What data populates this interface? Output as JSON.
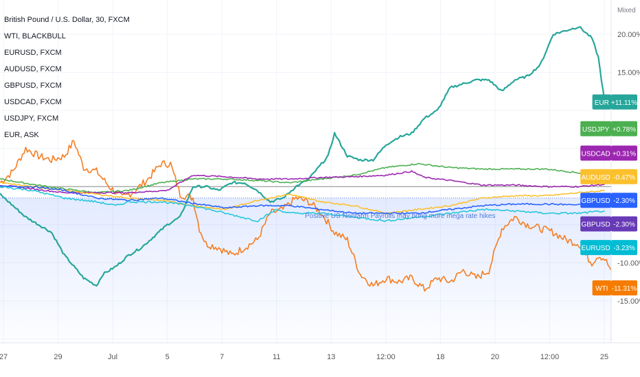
{
  "legend": [
    "British Pound / U.S. Dollar, 30, FXCM",
    "WTI, BLACKBULL",
    "EURUSD, FXCM",
    "AUDUSD, FXCM",
    "GBPUSD, FXCM",
    "USDCAD, FXCM",
    "USDJPY, FXCM",
    "EUR, ASK"
  ],
  "scale_mode": "Mixed",
  "chart_data": {
    "type": "line",
    "x_ticks": [
      "27",
      "29",
      "Jul",
      "5",
      "7",
      "11",
      "13",
      "12:00",
      "18",
      "20",
      "12:00",
      "25"
    ],
    "y_ticks": [
      {
        "v": 20,
        "label": "20.00%"
      },
      {
        "v": 15,
        "label": "15.00%"
      },
      {
        "v": -10,
        "label": "-10.00%"
      },
      {
        "v": -15,
        "label": "-15.00%"
      }
    ],
    "ylim": [
      -20.5,
      24.5
    ],
    "grid": true,
    "annotation": "Positive US Nonfarm Payrolls may bring more mega rate hikes",
    "series": [
      {
        "name": "WTI",
        "color": "#f57c1f",
        "noise": 1.0,
        "data": [
          [
            0,
            0.5
          ],
          [
            2,
            2
          ],
          [
            4,
            5
          ],
          [
            6,
            4
          ],
          [
            8,
            3.5
          ],
          [
            10,
            4
          ],
          [
            11.5,
            6
          ],
          [
            13,
            2.5
          ],
          [
            15,
            2
          ],
          [
            17,
            0
          ],
          [
            19,
            -1.5
          ],
          [
            21,
            -0.5
          ],
          [
            23,
            1
          ],
          [
            25,
            3
          ],
          [
            26.5,
            3
          ],
          [
            28,
            -1
          ],
          [
            30,
            -1.5
          ],
          [
            31,
            -5.5
          ],
          [
            32,
            -7.5
          ],
          [
            34,
            -8
          ],
          [
            36,
            -9
          ],
          [
            38,
            -8
          ],
          [
            40,
            -7
          ],
          [
            42,
            -3.5
          ],
          [
            44,
            -3
          ],
          [
            46,
            -1.5
          ],
          [
            48,
            -2
          ],
          [
            50,
            -3.5
          ],
          [
            52,
            -6
          ],
          [
            54,
            -7
          ],
          [
            56,
            -11.5
          ],
          [
            58,
            -13
          ],
          [
            60,
            -12
          ],
          [
            62,
            -12.5
          ],
          [
            64,
            -12
          ],
          [
            66,
            -13.5
          ],
          [
            68,
            -12
          ],
          [
            70,
            -12.5
          ],
          [
            72,
            -11
          ],
          [
            74,
            -12
          ],
          [
            76,
            -11
          ],
          [
            78,
            -5.5
          ],
          [
            80,
            -4
          ],
          [
            82,
            -5
          ],
          [
            84,
            -5.5
          ],
          [
            86,
            -6
          ],
          [
            88,
            -7
          ],
          [
            90,
            -7.5
          ],
          [
            91,
            -9
          ],
          [
            92,
            -10
          ],
          [
            93,
            -9
          ],
          [
            94,
            -9.5
          ],
          [
            95,
            -11
          ]
        ]
      },
      {
        "name": "EUR",
        "color": "#26a69a",
        "noise": 0.3,
        "data": [
          [
            0,
            -1
          ],
          [
            2,
            -2.5
          ],
          [
            4,
            -4
          ],
          [
            6,
            -5
          ],
          [
            8,
            -6
          ],
          [
            9,
            -7.5
          ],
          [
            10,
            -9
          ],
          [
            11,
            -10
          ],
          [
            12,
            -11
          ],
          [
            13,
            -12
          ],
          [
            15,
            -13
          ],
          [
            16,
            -11.5
          ],
          [
            18,
            -10.5
          ],
          [
            20,
            -9
          ],
          [
            22,
            -8
          ],
          [
            24,
            -6.5
          ],
          [
            26,
            -5
          ],
          [
            28,
            -4
          ],
          [
            29,
            -2
          ],
          [
            30,
            0
          ],
          [
            32,
            0
          ],
          [
            34,
            -0.5
          ],
          [
            36,
            0.5
          ],
          [
            38,
            0.5
          ],
          [
            40,
            -0.5
          ],
          [
            42,
            -2
          ],
          [
            44,
            -1.5
          ],
          [
            46,
            0
          ],
          [
            48,
            1
          ],
          [
            50,
            3
          ],
          [
            51,
            4
          ],
          [
            52,
            7
          ],
          [
            54,
            4
          ],
          [
            56,
            3.5
          ],
          [
            58,
            3.5
          ],
          [
            60,
            5.5
          ],
          [
            62,
            6.5
          ],
          [
            64,
            7
          ],
          [
            66,
            9
          ],
          [
            68,
            10
          ],
          [
            70,
            13
          ],
          [
            72,
            13.5
          ],
          [
            74,
            14
          ],
          [
            76,
            14
          ],
          [
            78,
            12.5
          ],
          [
            80,
            14
          ],
          [
            82,
            14.5
          ],
          [
            84,
            16
          ],
          [
            86,
            20
          ],
          [
            88,
            20.5
          ],
          [
            90,
            21
          ],
          [
            92,
            19.5
          ],
          [
            93,
            17
          ],
          [
            94,
            11
          ]
        ]
      },
      {
        "name": "USDJPY",
        "color": "#4caf50",
        "noise": 0.18,
        "data": [
          [
            0,
            1
          ],
          [
            5,
            0.3
          ],
          [
            10,
            -0.3
          ],
          [
            15,
            -0.8
          ],
          [
            20,
            -0.5
          ],
          [
            25,
            0.5
          ],
          [
            30,
            1
          ],
          [
            35,
            1
          ],
          [
            40,
            0.8
          ],
          [
            45,
            0.5
          ],
          [
            50,
            1
          ],
          [
            55,
            1.5
          ],
          [
            60,
            2.5
          ],
          [
            65,
            3
          ],
          [
            70,
            2.5
          ],
          [
            75,
            2.3
          ],
          [
            80,
            2.3
          ],
          [
            85,
            2.3
          ],
          [
            90,
            1.8
          ],
          [
            94,
            0.8
          ]
        ]
      },
      {
        "name": "USDCAD",
        "color": "#9c27b0",
        "noise": 0.18,
        "data": [
          [
            0,
            0.2
          ],
          [
            10,
            -0.8
          ],
          [
            20,
            -0.8
          ],
          [
            26,
            -0.5
          ],
          [
            30,
            1.5
          ],
          [
            35,
            1.3
          ],
          [
            40,
            1
          ],
          [
            45,
            1
          ],
          [
            50,
            1.2
          ],
          [
            55,
            1.3
          ],
          [
            60,
            1.5
          ],
          [
            64,
            2
          ],
          [
            66,
            1.2
          ],
          [
            70,
            0.8
          ],
          [
            75,
            0.2
          ],
          [
            80,
            0.2
          ],
          [
            85,
            0
          ],
          [
            90,
            0
          ],
          [
            94,
            0.3
          ]
        ]
      },
      {
        "name": "AUDUSD",
        "color": "#fbc02d",
        "noise": 0.18,
        "data": [
          [
            0,
            0.5
          ],
          [
            10,
            -0.5
          ],
          [
            20,
            -1.5
          ],
          [
            25,
            -1.8
          ],
          [
            30,
            -2.5
          ],
          [
            35,
            -3
          ],
          [
            40,
            -1.8
          ],
          [
            45,
            -1
          ],
          [
            50,
            -2
          ],
          [
            55,
            -2.5
          ],
          [
            60,
            -3.5
          ],
          [
            65,
            -3
          ],
          [
            70,
            -2.5
          ],
          [
            75,
            -1.5
          ],
          [
            80,
            -1.2
          ],
          [
            85,
            -1.2
          ],
          [
            90,
            -0.8
          ],
          [
            94,
            -0.5
          ]
        ]
      },
      {
        "name": "GBPUSD",
        "color": "#2962ff",
        "noise": 0.2,
        "data": [
          [
            0,
            0
          ],
          [
            5,
            0
          ],
          [
            10,
            -0.5
          ],
          [
            15,
            -1.5
          ],
          [
            20,
            -1.8
          ],
          [
            25,
            -1.5
          ],
          [
            30,
            -2.2
          ],
          [
            35,
            -2.8
          ],
          [
            40,
            -2.5
          ],
          [
            45,
            -2.5
          ],
          [
            50,
            -3
          ],
          [
            55,
            -3.5
          ],
          [
            60,
            -3.5
          ],
          [
            65,
            -3.5
          ],
          [
            70,
            -3
          ],
          [
            75,
            -2.5
          ],
          [
            80,
            -2.3
          ],
          [
            85,
            -2.3
          ],
          [
            90,
            -2.4
          ],
          [
            94,
            -2.3
          ]
        ]
      },
      {
        "name": "EURUSD",
        "color": "#26c6da",
        "noise": 0.25,
        "data": [
          [
            0,
            0
          ],
          [
            5,
            -0.5
          ],
          [
            10,
            -1.5
          ],
          [
            15,
            -2
          ],
          [
            18,
            -2.5
          ],
          [
            20,
            -2
          ],
          [
            25,
            -2
          ],
          [
            30,
            -2.5
          ],
          [
            35,
            -3.5
          ],
          [
            40,
            -4.5
          ],
          [
            43,
            -3
          ],
          [
            45,
            -3.5
          ],
          [
            50,
            -3.5
          ],
          [
            55,
            -4
          ],
          [
            60,
            -4.5
          ],
          [
            65,
            -4
          ],
          [
            70,
            -3.5
          ],
          [
            75,
            -3
          ],
          [
            80,
            -3.2
          ],
          [
            85,
            -3.5
          ],
          [
            90,
            -3.5
          ],
          [
            94,
            -3.2
          ]
        ]
      }
    ],
    "badges": [
      {
        "label": "EUR",
        "value": "+11.11%",
        "color": "#26a69a",
        "v": 11.11
      },
      {
        "label": "USDJPY",
        "value": "+0.78%",
        "color": "#4caf50",
        "v": 7.6
      },
      {
        "label": "USDCAD",
        "value": "+0.31%",
        "color": "#9c27b0",
        "v": 4.4
      },
      {
        "label": "AUDUSD",
        "value": "-0.47%",
        "color": "#fbc02d",
        "v": 1.3
      },
      {
        "label": "GBPUSD",
        "value": "-2.30%",
        "color": "#2962ff",
        "v": -1.8
      },
      {
        "label": "GBPUSD",
        "value": "-2.30%",
        "color": "#673ab7",
        "v": -4.9
      },
      {
        "label": "EURUSD",
        "value": "-3.23%",
        "color": "#00bcd4",
        "v": -8.0
      },
      {
        "label": "WTI",
        "value": "-11.31%",
        "color": "#f57c00",
        "v": -13.3
      }
    ]
  }
}
